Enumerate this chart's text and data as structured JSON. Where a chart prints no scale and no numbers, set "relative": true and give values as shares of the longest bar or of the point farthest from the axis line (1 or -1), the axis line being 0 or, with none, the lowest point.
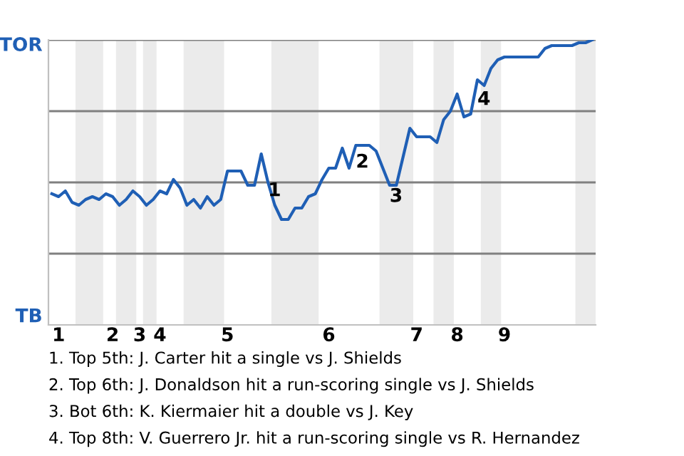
{
  "chart_data": {
    "type": "line",
    "relative": true,
    "categories": [
      null,
      "1",
      null,
      null,
      null,
      null,
      null,
      null,
      null,
      "2",
      null,
      null,
      null,
      "3",
      null,
      null,
      "4",
      null,
      null,
      null,
      null,
      null,
      null,
      null,
      null,
      null,
      "5",
      null,
      null,
      null,
      null,
      null,
      null,
      null,
      null,
      null,
      null,
      null,
      null,
      null,
      null,
      "6",
      null,
      null,
      null,
      null,
      null,
      null,
      null,
      null,
      null,
      null,
      null,
      null,
      "7",
      null,
      null,
      null,
      null,
      null,
      "8",
      null,
      null,
      null,
      null,
      null,
      null,
      "9",
      null,
      null,
      null,
      null,
      null,
      null,
      null,
      null,
      null,
      null,
      null,
      null,
      null
    ],
    "series": [
      {
        "color": "#1f5fb5",
        "values": [
          0.46,
          0.45,
          0.47,
          0.43,
          0.42,
          0.44,
          0.45,
          0.44,
          0.46,
          0.45,
          0.42,
          0.44,
          0.47,
          0.45,
          0.42,
          0.44,
          0.47,
          0.46,
          0.51,
          0.48,
          0.42,
          0.44,
          0.41,
          0.45,
          0.42,
          0.44,
          0.54,
          0.54,
          0.54,
          0.49,
          0.49,
          0.6,
          0.5,
          0.42,
          0.37,
          0.37,
          0.41,
          0.41,
          0.45,
          0.46,
          0.51,
          0.55,
          0.55,
          0.62,
          0.55,
          0.63,
          0.63,
          0.63,
          0.61,
          0.55,
          0.49,
          0.49,
          0.59,
          0.69,
          0.66,
          0.66,
          0.66,
          0.64,
          0.72,
          0.75,
          0.81,
          0.73,
          0.74,
          0.86,
          0.84,
          0.9,
          0.93,
          0.94,
          0.94,
          0.94,
          0.94,
          0.94,
          0.94,
          0.97,
          0.98,
          0.98,
          0.98,
          0.98,
          0.99,
          0.99,
          1
        ]
      }
    ],
    "marker": "none",
    "line_style": "solid",
    "grid": "y",
    "annotations": [
      "TOR",
      "TB",
      "1",
      "2",
      "3",
      "4",
      "1. Top 5th: J. Carter hit a single vs J. Shields",
      "2. Top 6th: J. Donaldson hit a run-scoring single vs J. Shields",
      "3. Bot 6th: K. Kiermaier hit a double vs J. Key",
      "4. Top 8th: V. Guerrero Jr. hit a run-scoring single vs R. Hernandez"
    ]
  }
}
